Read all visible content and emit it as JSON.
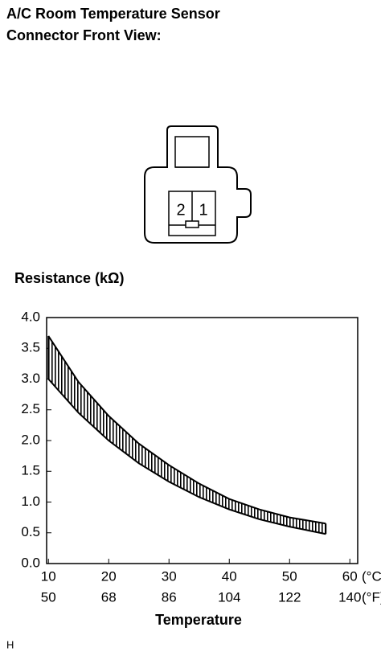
{
  "header": {
    "title": [
      "A/C Room Temperature Sensor",
      "Connector Front View:"
    ]
  },
  "connector": {
    "pins": [
      "2",
      "1"
    ]
  },
  "chart_data": {
    "type": "band",
    "ylabel": "Resistance (kΩ)",
    "xlabel": "Temperature",
    "x_unit": "(°C)",
    "x2_unit": "(°F)",
    "x": [
      10,
      15,
      20,
      25,
      30,
      35,
      40,
      45,
      50,
      56
    ],
    "series": [
      {
        "color": "#000000",
        "values": [
          3.7,
          2.95,
          2.4,
          1.95,
          1.6,
          1.3,
          1.05,
          0.88,
          0.75,
          0.65
        ]
      },
      {
        "color": "#000000",
        "values": [
          3.0,
          2.45,
          2.0,
          1.63,
          1.33,
          1.08,
          0.88,
          0.72,
          0.6,
          0.48
        ]
      }
    ],
    "xlim": [
      9.7,
      61.3
    ],
    "ylim": [
      0,
      4
    ],
    "xticks": [
      10,
      20,
      30,
      40,
      50,
      60
    ],
    "x2ticks": [
      {
        "value": 10,
        "label": "50"
      },
      {
        "value": 20,
        "label": "68"
      },
      {
        "value": 30,
        "label": "86"
      },
      {
        "value": 40,
        "label": "104"
      },
      {
        "value": 50,
        "label": "122"
      },
      {
        "value": 60,
        "label": "140"
      }
    ],
    "yticks": [
      {
        "value": 0,
        "label": "0.0"
      },
      {
        "value": 0.5,
        "label": "0.5"
      },
      {
        "value": 1,
        "label": "1.0"
      },
      {
        "value": 1.5,
        "label": "1.5"
      },
      {
        "value": 2,
        "label": "2.0"
      },
      {
        "value": 2.5,
        "label": "2.5"
      },
      {
        "value": 3,
        "label": "3.0"
      },
      {
        "value": 3.5,
        "label": "3.5"
      },
      {
        "value": 4,
        "label": "4.0"
      }
    ]
  },
  "footer": "H"
}
